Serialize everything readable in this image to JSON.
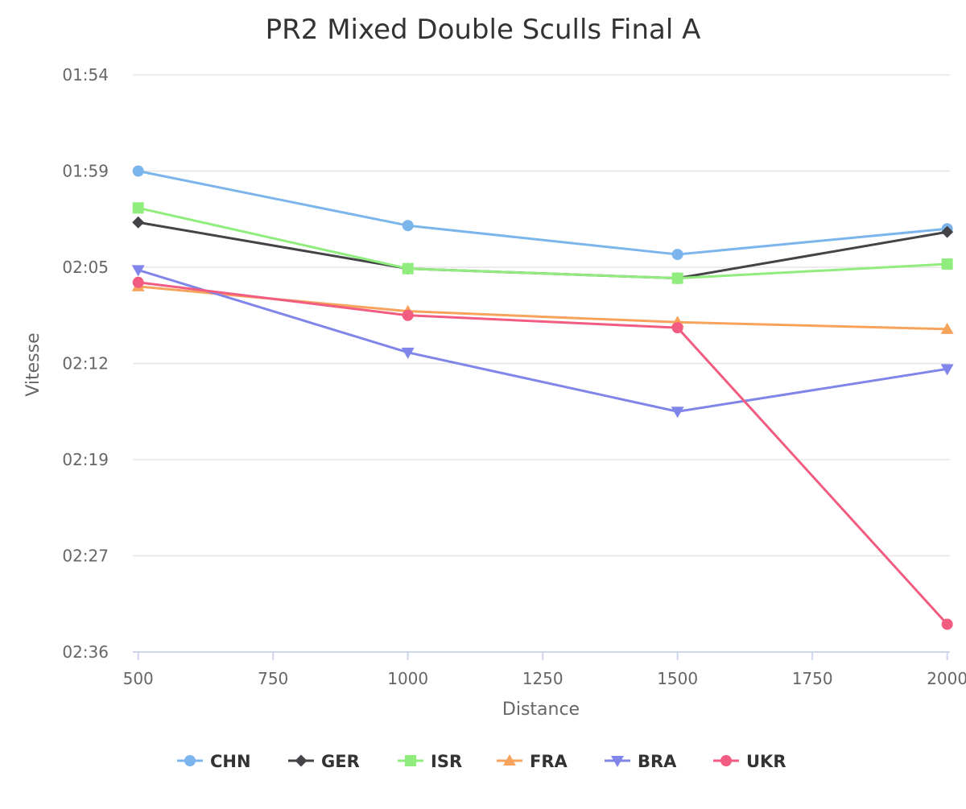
{
  "chart_data": {
    "type": "line",
    "title": "PR2 Mixed Double Sculls Final A",
    "xlabel": "Distance",
    "ylabel": "Vitesse",
    "x": [
      500,
      1000,
      1500,
      2000
    ],
    "x_ticks": [
      "500",
      "750",
      "1000",
      "1250",
      "1500",
      "1750",
      "2000"
    ],
    "x_tick_values": [
      500,
      750,
      1000,
      1250,
      1500,
      1750,
      2000
    ],
    "xlim": [
      490,
      2005
    ],
    "y_tick_labels": [
      "01:54",
      "01:59",
      "02:05",
      "02:12",
      "02:19",
      "02:27",
      "02:36"
    ],
    "y_tick_seconds": [
      114,
      119,
      125,
      132,
      139,
      147,
      156
    ],
    "y_reversed": true,
    "y_unit": "seconds (m:ss)",
    "grid": true,
    "legend": "bottom-center",
    "series": [
      {
        "name": "CHN",
        "marker": "circle",
        "color": "#7cb5ec",
        "values": [
          119.0,
          122.4,
          124.2,
          122.6
        ]
      },
      {
        "name": "GER",
        "marker": "diamond",
        "color": "#434348",
        "values": [
          122.2,
          125.1,
          125.8,
          122.8
        ]
      },
      {
        "name": "ISR",
        "marker": "square",
        "color": "#90ed7d",
        "values": [
          121.3,
          125.1,
          125.8,
          124.8
        ]
      },
      {
        "name": "FRA",
        "marker": "triangle",
        "color": "#f7a35c",
        "values": [
          126.4,
          128.2,
          129.0,
          129.5
        ]
      },
      {
        "name": "BRA",
        "marker": "triangle-down",
        "color": "#8085e9",
        "values": [
          125.2,
          131.2,
          135.5,
          132.4
        ]
      },
      {
        "name": "UKR",
        "marker": "circle",
        "color": "#f15c80",
        "values": [
          126.1,
          128.5,
          129.4,
          153.4
        ]
      }
    ]
  }
}
